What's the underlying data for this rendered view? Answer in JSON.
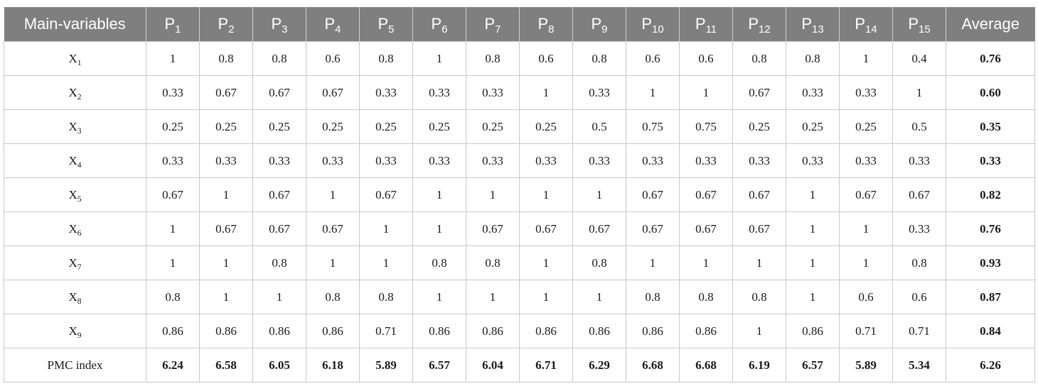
{
  "table": {
    "header": {
      "first": "Main-variables",
      "cols": [
        {
          "base": "P",
          "sub": "1"
        },
        {
          "base": "P",
          "sub": "2"
        },
        {
          "base": "P",
          "sub": "3"
        },
        {
          "base": "P",
          "sub": "4"
        },
        {
          "base": "P",
          "sub": "5"
        },
        {
          "base": "P",
          "sub": "6"
        },
        {
          "base": "P",
          "sub": "7"
        },
        {
          "base": "P",
          "sub": "8"
        },
        {
          "base": "P",
          "sub": "9"
        },
        {
          "base": "P",
          "sub": "10"
        },
        {
          "base": "P",
          "sub": "11"
        },
        {
          "base": "P",
          "sub": "12"
        },
        {
          "base": "P",
          "sub": "13"
        },
        {
          "base": "P",
          "sub": "14"
        },
        {
          "base": "P",
          "sub": "15"
        }
      ],
      "last": "Average"
    },
    "rows": [
      {
        "base": "X",
        "sub": "1",
        "values": [
          "1",
          "0.8",
          "0.8",
          "0.6",
          "0.8",
          "1",
          "0.8",
          "0.6",
          "0.8",
          "0.6",
          "0.6",
          "0.8",
          "0.8",
          "1",
          "0.4"
        ],
        "average": "0.76"
      },
      {
        "base": "X",
        "sub": "2",
        "values": [
          "0.33",
          "0.67",
          "0.67",
          "0.67",
          "0.33",
          "0.33",
          "0.33",
          "1",
          "0.33",
          "1",
          "1",
          "0.67",
          "0.33",
          "0.33",
          "1"
        ],
        "average": "0.60"
      },
      {
        "base": "X",
        "sub": "3",
        "values": [
          "0.25",
          "0.25",
          "0.25",
          "0.25",
          "0.25",
          "0.25",
          "0.25",
          "0.25",
          "0.5",
          "0.75",
          "0.75",
          "0.25",
          "0.25",
          "0.25",
          "0.5"
        ],
        "average": "0.35"
      },
      {
        "base": "X",
        "sub": "4",
        "values": [
          "0.33",
          "0.33",
          "0.33",
          "0.33",
          "0.33",
          "0.33",
          "0.33",
          "0.33",
          "0.33",
          "0.33",
          "0.33",
          "0.33",
          "0.33",
          "0.33",
          "0.33"
        ],
        "average": "0.33"
      },
      {
        "base": "X",
        "sub": "5",
        "values": [
          "0.67",
          "1",
          "0.67",
          "1",
          "0.67",
          "1",
          "1",
          "1",
          "1",
          "0.67",
          "0.67",
          "0.67",
          "1",
          "0.67",
          "0.67"
        ],
        "average": "0.82"
      },
      {
        "base": "X",
        "sub": "6",
        "values": [
          "1",
          "0.67",
          "0.67",
          "0.67",
          "1",
          "1",
          "0.67",
          "0.67",
          "0.67",
          "0.67",
          "0.67",
          "0.67",
          "1",
          "1",
          "0.33"
        ],
        "average": "0.76"
      },
      {
        "base": "X",
        "sub": "7",
        "values": [
          "1",
          "1",
          "0.8",
          "1",
          "1",
          "0.8",
          "0.8",
          "1",
          "0.8",
          "1",
          "1",
          "1",
          "1",
          "1",
          "0.8"
        ],
        "average": "0.93"
      },
      {
        "base": "X",
        "sub": "8",
        "values": [
          "0.8",
          "1",
          "1",
          "0.8",
          "0.8",
          "1",
          "1",
          "1",
          "1",
          "0.8",
          "0.8",
          "0.8",
          "1",
          "0.6",
          "0.6"
        ],
        "average": "0.87"
      },
      {
        "base": "X",
        "sub": "9",
        "values": [
          "0.86",
          "0.86",
          "0.86",
          "0.86",
          "0.71",
          "0.86",
          "0.86",
          "0.86",
          "0.86",
          "0.86",
          "0.86",
          "1",
          "0.86",
          "0.71",
          "0.71"
        ],
        "average": "0.84"
      }
    ],
    "pmc": {
      "label": "PMC index",
      "values": [
        "6.24",
        "6.58",
        "6.05",
        "6.18",
        "5.89",
        "6.57",
        "6.04",
        "6.71",
        "6.29",
        "6.68",
        "6.68",
        "6.19",
        "6.57",
        "5.89",
        "5.34"
      ],
      "average": "6.26"
    }
  }
}
